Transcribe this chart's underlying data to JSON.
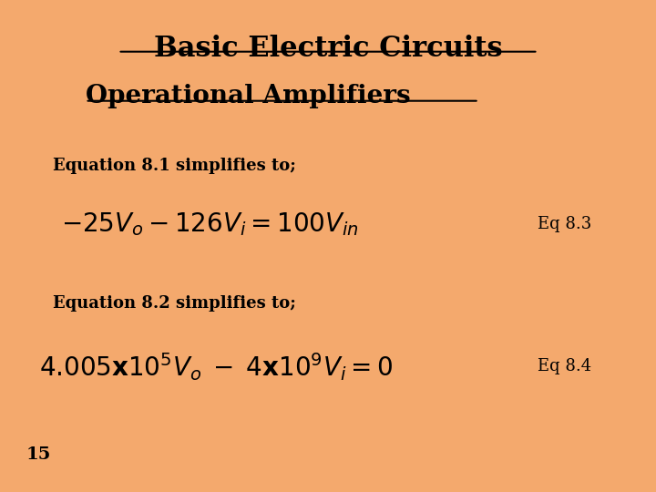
{
  "background_color": "#F4A96D",
  "title": "Basic Electric Circuits",
  "subtitle": "Operational Amplifiers",
  "eq_intro_1": "Equation 8.1 simplifies to;",
  "eq1_label": "Eq 8.3",
  "eq_intro_2": "Equation 8.2 simplifies to;",
  "eq2_label": "Eq 8.4",
  "page_num": "15",
  "title_fontsize": 22,
  "subtitle_fontsize": 20,
  "intro_fontsize": 13,
  "eq_fontsize": 20,
  "eq_label_fontsize": 13,
  "page_fontsize": 14
}
